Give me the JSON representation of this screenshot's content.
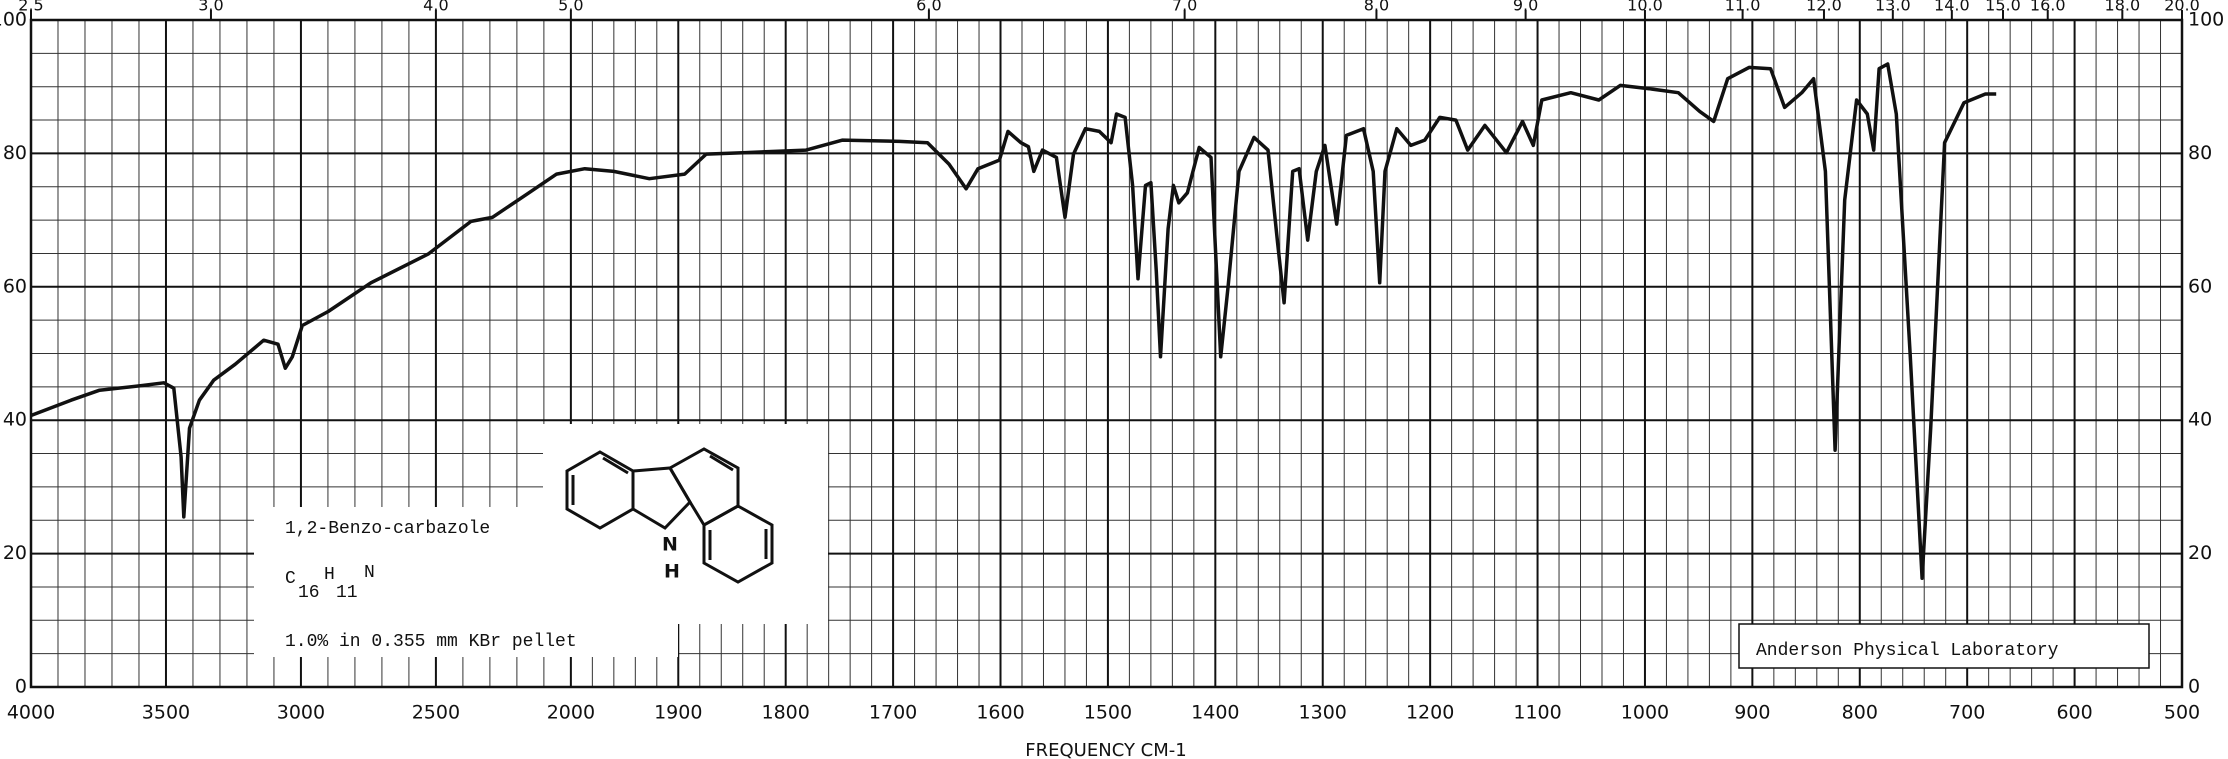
{
  "chart_data": {
    "type": "line",
    "x_label": "FREQUENCY   CM-1",
    "color": "#111111",
    "grid": true,
    "xlim": [
      4000,
      500
    ],
    "ylim": [
      0,
      100
    ],
    "xticks": [
      4000,
      3500,
      3000,
      2500,
      2000,
      1900,
      1800,
      1700,
      1600,
      1500,
      1400,
      1300,
      1200,
      1100,
      1000,
      900,
      800,
      700,
      600,
      500
    ],
    "yticks": [
      0,
      20,
      40,
      60,
      80,
      100
    ],
    "x2ticks": [
      {
        "value": 2.5,
        "label": "2.5"
      },
      {
        "value": 3,
        "label": "3.0"
      },
      {
        "value": 4,
        "label": "4.0"
      },
      {
        "value": 5,
        "label": "5.0"
      },
      {
        "value": 6,
        "label": "6.0"
      },
      {
        "value": 7,
        "label": "7.0"
      },
      {
        "value": 8,
        "label": "8.0"
      },
      {
        "value": 9,
        "label": "9.0"
      },
      {
        "value": 10,
        "label": "10.0"
      },
      {
        "value": 11,
        "label": "11.0"
      },
      {
        "value": 12,
        "label": "12.0"
      },
      {
        "value": 13,
        "label": "13.0"
      },
      {
        "value": 14,
        "label": "14.0"
      },
      {
        "value": 15,
        "label": "15.0"
      },
      {
        "value": 16,
        "label": "16.0"
      },
      {
        "value": 18,
        "label": "18.0"
      },
      {
        "value": 20,
        "label": "20.0"
      }
    ],
    "x": [
      4000,
      3852,
      3746,
      3587,
      3508,
      3471,
      3444,
      3434,
      3413,
      3376,
      3323,
      3243,
      3138,
      3085,
      3058,
      3032,
      2995,
      2899,
      2741,
      2529,
      2370,
      2291,
      2159,
      2053,
      1987,
      1960,
      1927,
      1894,
      1874,
      1840,
      1781,
      1747,
      1694,
      1668,
      1648,
      1632,
      1621,
      1601,
      1593,
      1581,
      1574,
      1569,
      1561,
      1548,
      1540,
      1532,
      1521,
      1508,
      1497,
      1492,
      1484,
      1477,
      1472,
      1465,
      1460,
      1455,
      1451,
      1444,
      1439,
      1434,
      1426,
      1415,
      1404,
      1395,
      1388,
      1378,
      1364,
      1351,
      1342,
      1336,
      1328,
      1322,
      1314,
      1306,
      1298,
      1287,
      1278,
      1262,
      1253,
      1247,
      1242,
      1231,
      1218,
      1205,
      1191,
      1176,
      1165,
      1149,
      1129,
      1114,
      1104,
      1096,
      1069,
      1043,
      1023,
      996,
      969,
      949,
      936,
      923,
      903,
      883,
      870,
      854,
      843,
      832,
      823,
      814,
      803,
      793,
      787,
      782,
      774,
      766,
      753,
      742,
      734,
      721,
      703,
      683,
      673
    ],
    "y": [
      40.7,
      43,
      44.5,
      45.2,
      45.6,
      44.8,
      34.5,
      25.5,
      38.8,
      43,
      46,
      48.4,
      52,
      51.4,
      47.8,
      49.5,
      54.2,
      56.3,
      60.6,
      64.9,
      69.8,
      70.4,
      74,
      76.9,
      77.7,
      77.3,
      76.2,
      76.9,
      79.9,
      80.1,
      80.5,
      82,
      81.8,
      81.6,
      78.4,
      74.7,
      77.7,
      79,
      83.3,
      81.6,
      81,
      77.3,
      80.5,
      79.4,
      70.4,
      79.9,
      83.7,
      83.3,
      81.6,
      85.9,
      85.4,
      75.2,
      61.2,
      75.2,
      75.6,
      62.3,
      49.5,
      68.7,
      75.2,
      72.6,
      74.1,
      80.9,
      79.4,
      49.5,
      60.2,
      77.3,
      82.4,
      80.5,
      66.6,
      57.6,
      77.3,
      77.7,
      67,
      77.3,
      81.2,
      69.4,
      82.7,
      83.7,
      77.3,
      60.6,
      77.3,
      83.7,
      81.2,
      82,
      85.4,
      85,
      80.5,
      84.2,
      80.1,
      84.8,
      81.2,
      88,
      89.1,
      88,
      90.2,
      89.7,
      89.1,
      86.3,
      84.8,
      91.2,
      92.9,
      92.7,
      86.9,
      89.1,
      91.2,
      77.3,
      35.5,
      73,
      88,
      85.9,
      80.5,
      92.7,
      93.4,
      85.9,
      49.5,
      16.3,
      38.8,
      81.6,
      87.6,
      88.9,
      88.9
    ],
    "annotations": {
      "compound": "1,2-Benzo-carbazole",
      "formula": [
        "C",
        "16",
        "H",
        "11",
        "N"
      ],
      "sample": "1.0% in 0.355 mm  KBr pellet",
      "atoms": [
        "N",
        "H"
      ],
      "lab": "Anderson Physical Laboratory"
    }
  }
}
